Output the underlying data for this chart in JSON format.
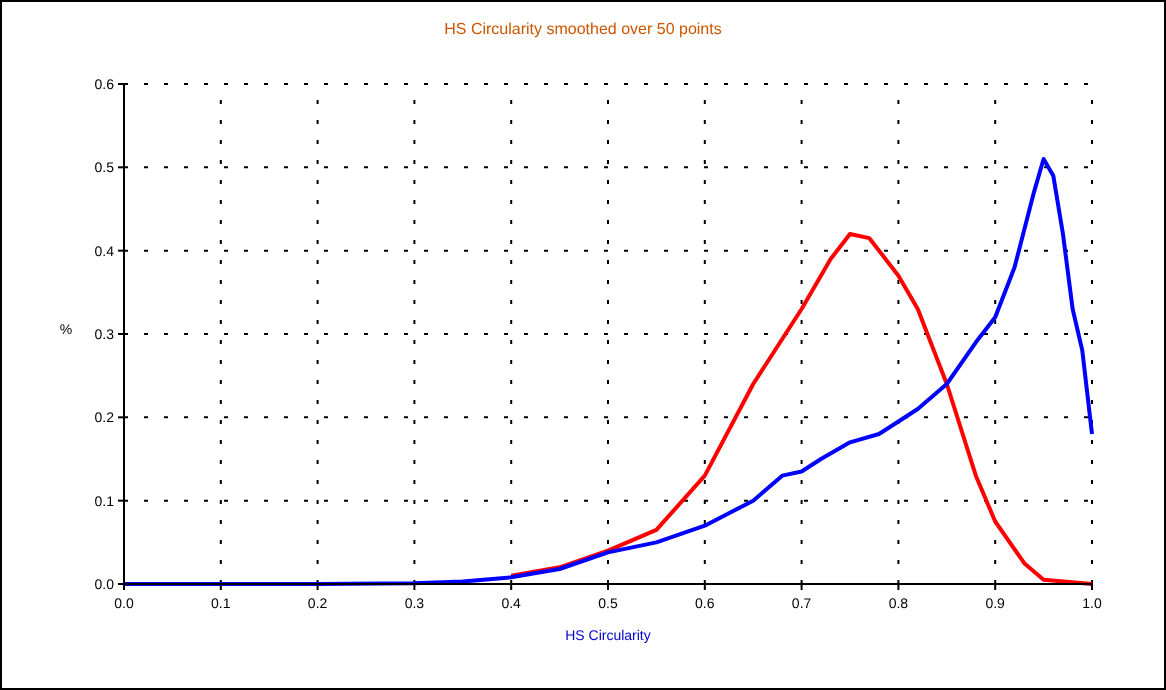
{
  "chart_data": {
    "type": "line",
    "title": "HS Circularity smoothed over 50 points",
    "xlabel": "HS Circularity",
    "ylabel": "%",
    "grid": true,
    "marker": "none",
    "line_style": "solid",
    "xlim": [
      0,
      1
    ],
    "xticks": [
      {
        "value": 0,
        "label": "0.0"
      },
      0.1,
      0.2,
      0.3,
      0.4,
      0.5,
      0.6,
      0.7,
      0.8,
      0.9,
      {
        "value": 1,
        "label": "1.0"
      }
    ],
    "ylim": [
      0,
      0.6
    ],
    "yticks": [
      {
        "value": 0,
        "label": "0.0"
      },
      0.1,
      0.2,
      0.3,
      0.4,
      0.5,
      0.6
    ],
    "series": [
      {
        "color": "#ff0000",
        "x": [
          0.4,
          0.45,
          0.5,
          0.55,
          0.6,
          0.65,
          0.7,
          0.73,
          0.75,
          0.77,
          0.8,
          0.82,
          0.85,
          0.88,
          0.9,
          0.93,
          0.95,
          1
        ],
        "values": [
          0.01,
          0.02,
          0.04,
          0.065,
          0.13,
          0.24,
          0.33,
          0.39,
          0.42,
          0.415,
          0.37,
          0.33,
          0.24,
          0.13,
          0.075,
          0.025,
          0.005,
          0
        ]
      },
      {
        "color": "#0000ff",
        "x": [
          0,
          0.1,
          0.2,
          0.3,
          0.35,
          0.4,
          0.45,
          0.5,
          0.55,
          0.6,
          0.65,
          0.68,
          0.7,
          0.72,
          0.75,
          0.78,
          0.8,
          0.82,
          0.85,
          0.88,
          0.9,
          0.92,
          0.94,
          0.95,
          0.96,
          0.97,
          0.98,
          0.99,
          1
        ],
        "values": [
          0,
          0,
          0,
          0.001,
          0.003,
          0.008,
          0.018,
          0.038,
          0.05,
          0.07,
          0.1,
          0.13,
          0.135,
          0.15,
          0.17,
          0.18,
          0.195,
          0.21,
          0.24,
          0.29,
          0.32,
          0.38,
          0.47,
          0.51,
          0.49,
          0.42,
          0.33,
          0.28,
          0.18
        ]
      }
    ]
  }
}
